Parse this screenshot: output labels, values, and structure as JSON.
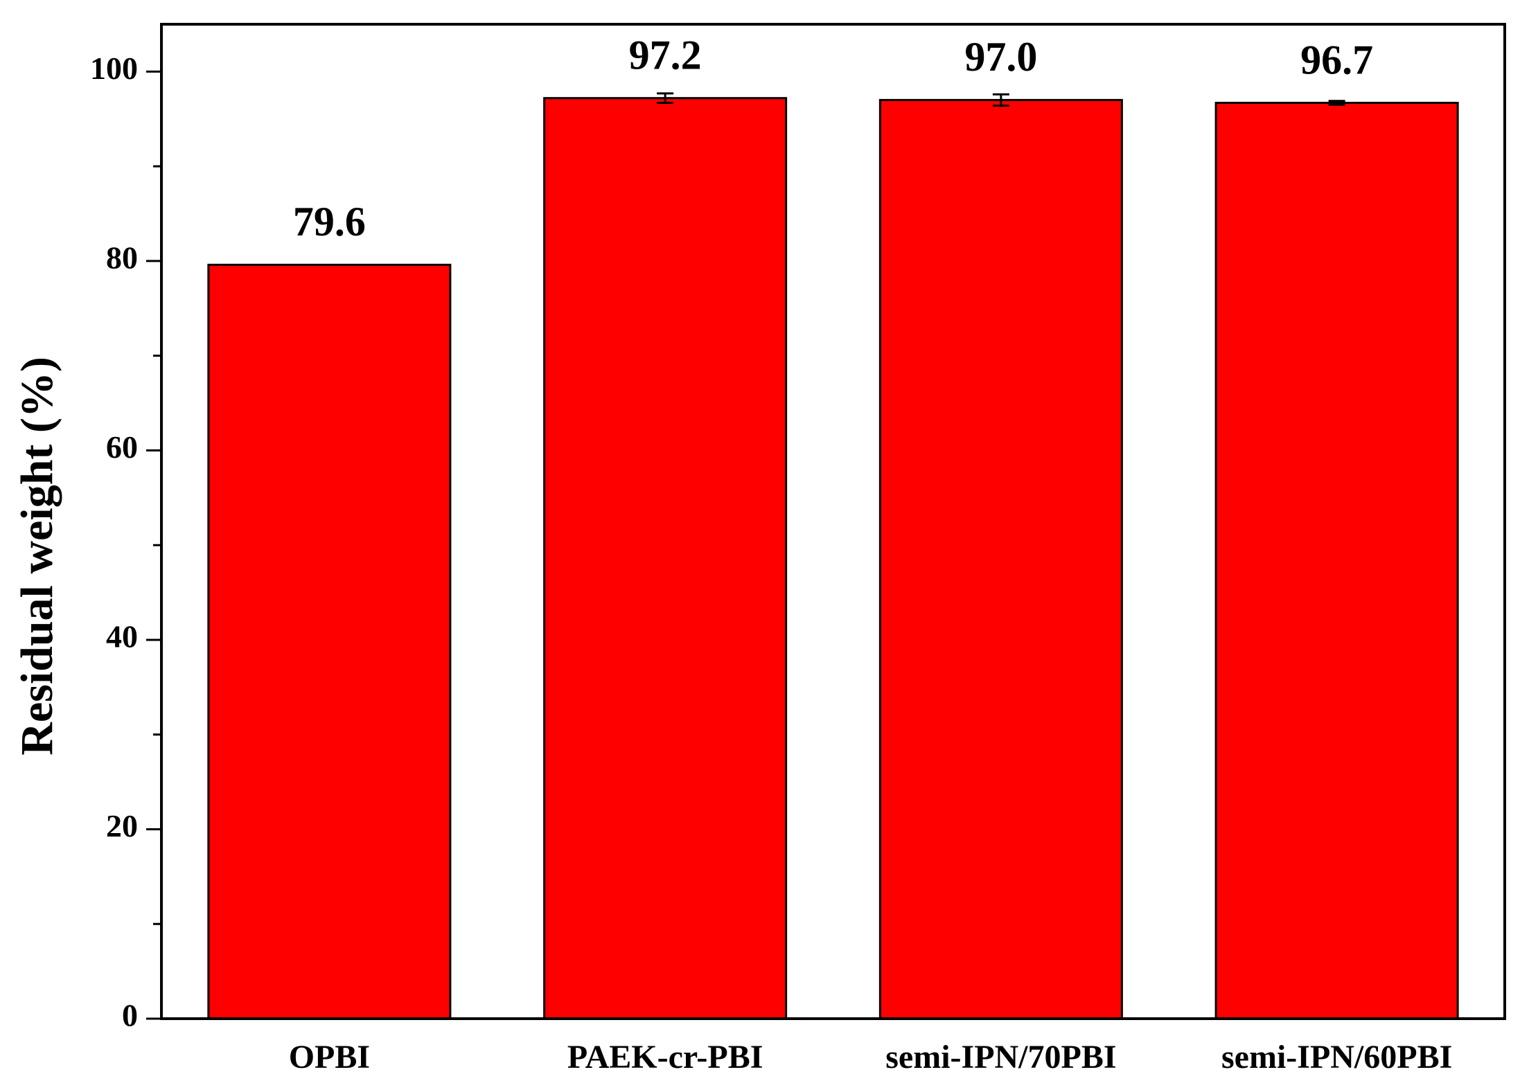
{
  "chart_data": {
    "type": "bar",
    "y_label": "Residual weight (%)",
    "categories": [
      "OPBI",
      "PAEK-cr-PBI",
      "semi-IPN/70PBI",
      "semi-IPN/60PBI"
    ],
    "values": [
      79.6,
      97.2,
      97.0,
      96.7
    ],
    "value_labels": [
      "79.6",
      "97.2",
      "97.0",
      "96.7"
    ],
    "errors": [
      0,
      0.5,
      0.6,
      0.2
    ],
    "color": "#ff0000",
    "ylim": [
      0,
      105
    ],
    "yticks": [
      0,
      20,
      40,
      60,
      80,
      100
    ],
    "yticks_minor": [
      10,
      30,
      50,
      70,
      90
    ],
    "grid": false
  }
}
